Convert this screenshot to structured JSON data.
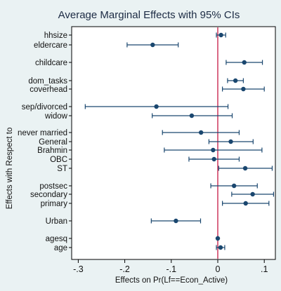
{
  "chart_data": {
    "type": "scatter",
    "title": "Average Marginal Effects with 95% CIs",
    "xlabel": "Effects on Pr(Lf==Econ_Active)",
    "ylabel": "Effects with Respect to",
    "xlim": [
      -0.31,
      0.13
    ],
    "xticks": [
      {
        "value": -0.3,
        "label": "-.3"
      },
      {
        "value": -0.2,
        "label": "-.2"
      },
      {
        "value": -0.1,
        "label": "-.1"
      },
      {
        "value": 0,
        "label": "0"
      },
      {
        "value": 0.1,
        "label": ".1"
      }
    ],
    "reference_line": 0,
    "grid": false,
    "colors": {
      "background": "#eaf2f3",
      "plot_area": "#ffffff",
      "marker": "#1a476f",
      "reference_line": "#c10534"
    },
    "points": [
      {
        "label": "hhsize",
        "estimate": 0.007,
        "lower": -0.003,
        "upper": 0.017
      },
      {
        "label": "eldercare",
        "estimate": -0.14,
        "lower": -0.195,
        "upper": -0.085
      },
      {
        "label": "childcare",
        "estimate": 0.057,
        "lower": 0.018,
        "upper": 0.096
      },
      {
        "label": "dom_tasks",
        "estimate": 0.038,
        "lower": 0.021,
        "upper": 0.055
      },
      {
        "label": "coverhead",
        "estimate": 0.055,
        "lower": 0.01,
        "upper": 0.1
      },
      {
        "label": "sep/divorced",
        "estimate": -0.132,
        "lower": -0.285,
        "upper": 0.022
      },
      {
        "label": "widow",
        "estimate": -0.056,
        "lower": -0.141,
        "upper": 0.031
      },
      {
        "label": "never married",
        "estimate": -0.036,
        "lower": -0.119,
        "upper": 0.046
      },
      {
        "label": "General",
        "estimate": 0.028,
        "lower": -0.019,
        "upper": 0.076
      },
      {
        "label": "Brahmin",
        "estimate": -0.01,
        "lower": -0.115,
        "upper": 0.095
      },
      {
        "label": "OBC",
        "estimate": -0.008,
        "lower": -0.062,
        "upper": 0.046
      },
      {
        "label": "ST",
        "estimate": 0.059,
        "lower": 0.002,
        "upper": 0.117
      },
      {
        "label": "postsec",
        "estimate": 0.035,
        "lower": -0.015,
        "upper": 0.085
      },
      {
        "label": "secondary",
        "estimate": 0.075,
        "lower": 0.03,
        "upper": 0.12
      },
      {
        "label": "primary",
        "estimate": 0.06,
        "lower": 0.01,
        "upper": 0.11
      },
      {
        "label": "Urban",
        "estimate": -0.09,
        "lower": -0.143,
        "upper": -0.037
      },
      {
        "label": "agesq",
        "estimate": 0.0,
        "lower": 0.0,
        "upper": 0.0
      },
      {
        "label": "age",
        "estimate": 0.006,
        "lower": -0.003,
        "upper": 0.015
      }
    ]
  }
}
